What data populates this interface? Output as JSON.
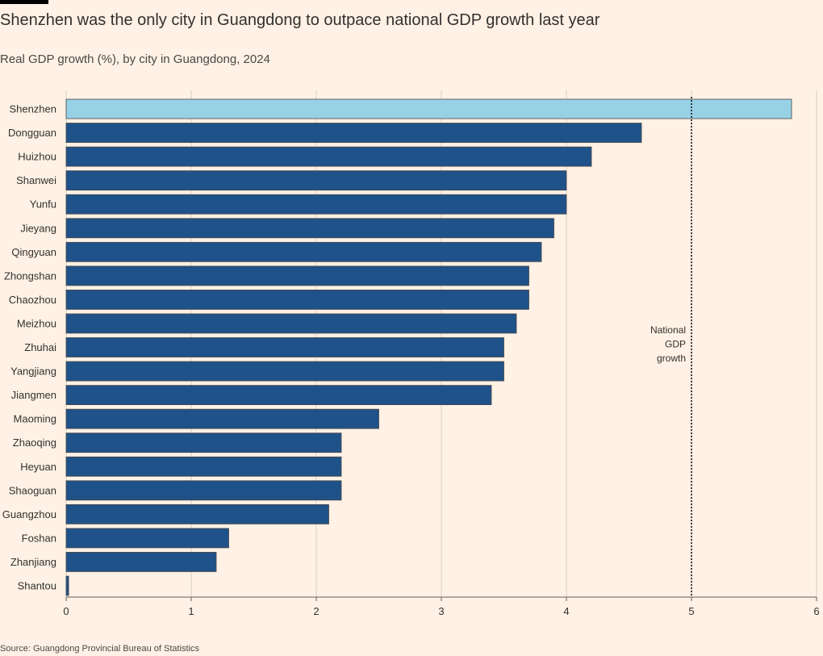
{
  "title": "Shenzhen was the only city in Guangdong to outpace national GDP growth last year",
  "subtitle": "Real GDP growth (%), by city in Guangdong, 2024",
  "source": "Source: Guangdong Provincial Bureau of Statistics",
  "colors": {
    "highlight": "#96d1e6",
    "bar": "#1f5289",
    "background": "#fff1e5"
  },
  "chart_data": {
    "type": "bar",
    "orientation": "horizontal",
    "categories": [
      "Shenzhen",
      "Dongguan",
      "Huizhou",
      "Shanwei",
      "Yunfu",
      "Jieyang",
      "Qingyuan",
      "Zhongshan",
      "Chaozhou",
      "Meizhou",
      "Zhuhai",
      "Yangjiang",
      "Jiangmen",
      "Maoming",
      "Zhaoqing",
      "Heyuan",
      "Shaoguan",
      "Guangzhou",
      "Foshan",
      "Zhanjiang",
      "Shantou"
    ],
    "values": [
      5.8,
      4.6,
      4.2,
      4.0,
      4.0,
      3.9,
      3.8,
      3.7,
      3.7,
      3.6,
      3.5,
      3.5,
      3.4,
      2.5,
      2.2,
      2.2,
      2.2,
      2.1,
      1.3,
      1.2,
      0.02
    ],
    "highlight": "Shenzhen",
    "xlim": [
      0,
      6
    ],
    "xticks": [
      "0",
      "1",
      "2",
      "3",
      "4",
      "5",
      "6"
    ],
    "grid": "vertical",
    "reference_line": {
      "value": 5,
      "label_lines": [
        "National",
        "GDP",
        "growth"
      ]
    }
  }
}
